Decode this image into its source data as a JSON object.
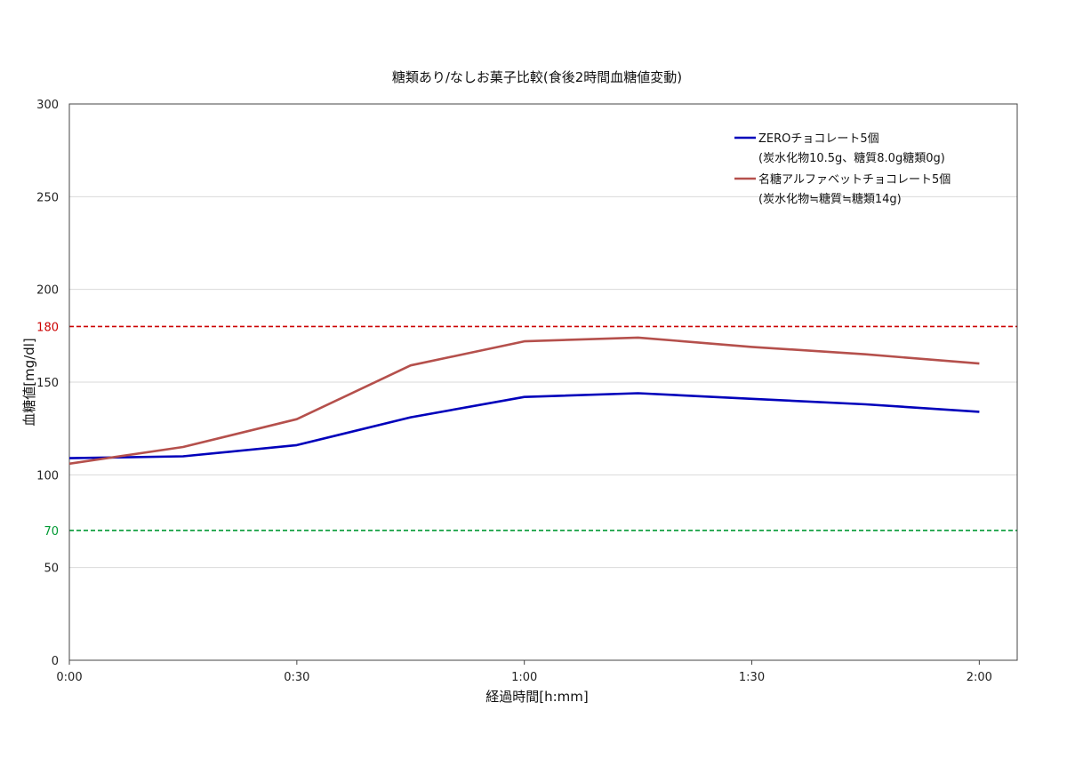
{
  "chart_data": {
    "type": "line",
    "title": "糖類あり/なしお菓子比較(食後2時間血糖値変動)",
    "xlabel": "経過時間[h:mm]",
    "ylabel": "血糖値[mg/dl]",
    "x_minutes": [
      0,
      15,
      30,
      45,
      60,
      75,
      90,
      105,
      120
    ],
    "xlim": [
      0,
      125
    ],
    "ylim": [
      0,
      300
    ],
    "x_ticks": [
      {
        "value": 0,
        "label": "0:00"
      },
      {
        "value": 30,
        "label": "0:30"
      },
      {
        "value": 60,
        "label": "1:00"
      },
      {
        "value": 90,
        "label": "1:30"
      },
      {
        "value": 120,
        "label": "2:00"
      }
    ],
    "y_ticks": [
      {
        "value": 0,
        "label": "0"
      },
      {
        "value": 50,
        "label": "50"
      },
      {
        "value": 100,
        "label": "100"
      },
      {
        "value": 150,
        "label": "150"
      },
      {
        "value": 200,
        "label": "200"
      },
      {
        "value": 250,
        "label": "250"
      },
      {
        "value": 300,
        "label": "300"
      }
    ],
    "grid": true,
    "legend_position": "top-right",
    "series": [
      {
        "name": "ZEROチョコレート5個",
        "note": "(炭水化物10.5g、糖質8.0g糖類0g)",
        "color": "#0000bb",
        "values": [
          109,
          110,
          116,
          131,
          142,
          144,
          141,
          138,
          134
        ]
      },
      {
        "name": "名糖アルファベットチョコレート5個",
        "note": "(炭水化物≒糖質≒糖類14g)",
        "color": "#b5504c",
        "values": [
          106,
          115,
          130,
          159,
          172,
          174,
          169,
          165,
          160
        ]
      }
    ],
    "reference_lines": [
      {
        "value": 180,
        "label": "180",
        "color": "#cc0000"
      },
      {
        "value": 70,
        "label": "70",
        "color": "#009933"
      }
    ]
  }
}
